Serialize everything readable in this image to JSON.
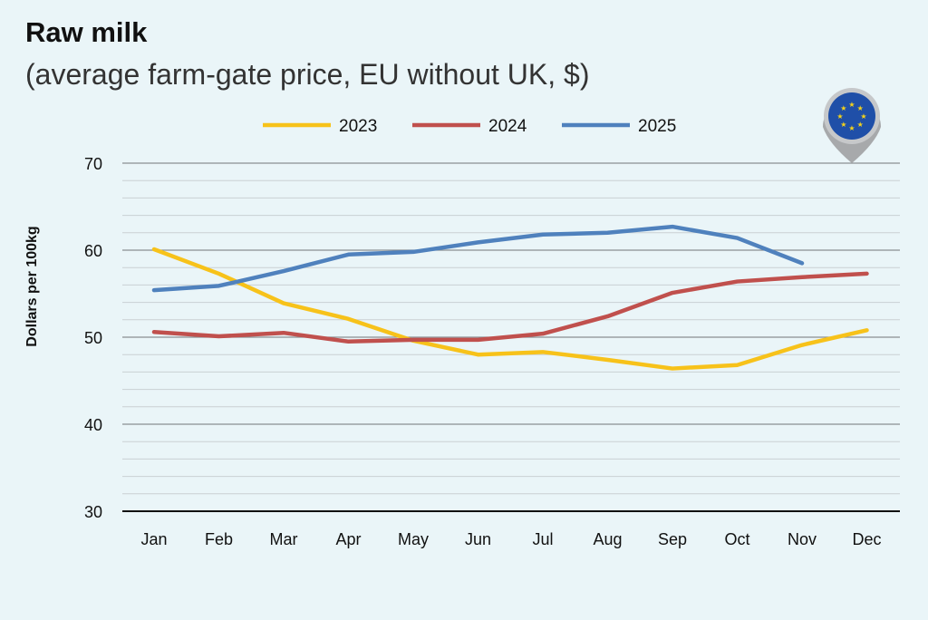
{
  "chart_data": {
    "type": "line",
    "title": "Raw milk",
    "subtitle": "(average farm-gate price, EU without UK, $)",
    "xlabel": "",
    "ylabel": "Dollars per 100kg",
    "ylim": [
      30,
      70
    ],
    "yticks": [
      "30",
      "40",
      "50",
      "60",
      "70"
    ],
    "grid": true,
    "legend": "top-center",
    "categories": [
      "Jan",
      "Feb",
      "Mar",
      "Apr",
      "May",
      "Jun",
      "Jul",
      "Aug",
      "Sep",
      "Oct",
      "Nov",
      "Dec"
    ],
    "series": [
      {
        "name": "2023",
        "color": "#f7c21a",
        "values": [
          60.1,
          57.3,
          53.9,
          52.1,
          49.6,
          48.0,
          48.3,
          47.4,
          46.4,
          46.8,
          49.1,
          50.8
        ]
      },
      {
        "name": "2024",
        "color": "#c0504d",
        "values": [
          50.6,
          50.1,
          50.5,
          49.5,
          49.7,
          49.7,
          50.4,
          52.4,
          55.1,
          56.4,
          56.9,
          57.3
        ]
      },
      {
        "name": "2025",
        "color": "#4f81bd",
        "values": [
          55.4,
          55.9,
          57.6,
          59.5,
          59.8,
          60.9,
          61.8,
          62.0,
          62.7,
          61.4,
          58.5,
          null
        ]
      }
    ]
  },
  "icon": "eu-flag-map-pin-icon"
}
